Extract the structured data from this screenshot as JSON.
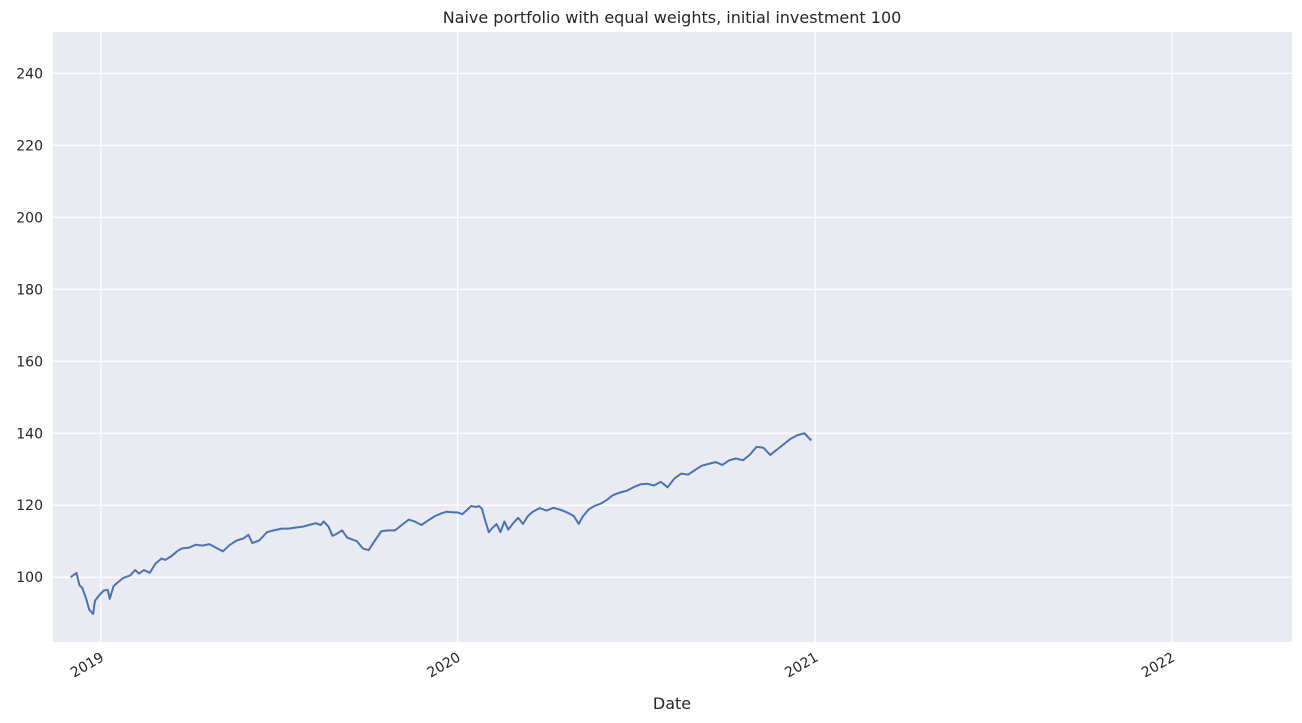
{
  "chart_data": {
    "type": "line",
    "title": "Naive portfolio with equal weights, initial investment 100",
    "xlabel": "Date",
    "ylabel": "",
    "grid": true,
    "legend": "none",
    "colors": {
      "background": "#eaeaf2",
      "grid": "#ffffff",
      "line": "#4c72b0",
      "text": "#262626"
    },
    "xlim": [
      "2018-11-13",
      "2022-05-04"
    ],
    "ylim": [
      82,
      251.5
    ],
    "xticks": [
      {
        "date": "2019-01-01",
        "label": "2019"
      },
      {
        "date": "2020-01-01",
        "label": "2020"
      },
      {
        "date": "2021-01-01",
        "label": "2021"
      },
      {
        "date": "2022-01-01",
        "label": "2022"
      }
    ],
    "yticks": [
      100,
      120,
      140,
      160,
      180,
      200,
      220,
      240
    ],
    "series": [
      {
        "values": [
          [
            "2018-12-01",
            100
          ],
          [
            "2018-12-04",
            100.6
          ],
          [
            "2018-12-07",
            101.2
          ],
          [
            "2018-12-10",
            97.8
          ],
          [
            "2018-12-13",
            97.0
          ],
          [
            "2018-12-17",
            94.0
          ],
          [
            "2018-12-20",
            91.0
          ],
          [
            "2018-12-24",
            89.8
          ],
          [
            "2018-12-26",
            93.5
          ],
          [
            "2018-12-31",
            95.2
          ],
          [
            "2019-01-04",
            96.3
          ],
          [
            "2019-01-08",
            96.5
          ],
          [
            "2019-01-10",
            94.0
          ],
          [
            "2019-01-14",
            97.5
          ],
          [
            "2019-01-18",
            98.5
          ],
          [
            "2019-01-24",
            99.8
          ],
          [
            "2019-01-31",
            100.5
          ],
          [
            "2019-02-05",
            102.0
          ],
          [
            "2019-02-09",
            101.0
          ],
          [
            "2019-02-14",
            102.0
          ],
          [
            "2019-02-20",
            101.2
          ],
          [
            "2019-02-26",
            103.8
          ],
          [
            "2019-03-04",
            105.2
          ],
          [
            "2019-03-08",
            104.8
          ],
          [
            "2019-03-14",
            105.8
          ],
          [
            "2019-03-20",
            107.2
          ],
          [
            "2019-03-25",
            108.0
          ],
          [
            "2019-04-01",
            108.2
          ],
          [
            "2019-04-08",
            109.0
          ],
          [
            "2019-04-15",
            108.8
          ],
          [
            "2019-04-22",
            109.2
          ],
          [
            "2019-04-30",
            108.0
          ],
          [
            "2019-05-06",
            107.2
          ],
          [
            "2019-05-13",
            109.0
          ],
          [
            "2019-05-20",
            110.2
          ],
          [
            "2019-05-27",
            110.8
          ],
          [
            "2019-06-01",
            111.8
          ],
          [
            "2019-06-05",
            109.5
          ],
          [
            "2019-06-12",
            110.2
          ],
          [
            "2019-06-20",
            112.5
          ],
          [
            "2019-06-27",
            113.0
          ],
          [
            "2019-07-05",
            113.5
          ],
          [
            "2019-07-12",
            113.5
          ],
          [
            "2019-07-19",
            113.8
          ],
          [
            "2019-07-26",
            114.0
          ],
          [
            "2019-08-02",
            114.5
          ],
          [
            "2019-08-09",
            115.0
          ],
          [
            "2019-08-14",
            114.5
          ],
          [
            "2019-08-17",
            115.5
          ],
          [
            "2019-08-22",
            114.0
          ],
          [
            "2019-08-26",
            111.5
          ],
          [
            "2019-08-30",
            112.0
          ],
          [
            "2019-09-05",
            113.0
          ],
          [
            "2019-09-10",
            111.0
          ],
          [
            "2019-09-15",
            110.5
          ],
          [
            "2019-09-20",
            110.0
          ],
          [
            "2019-09-26",
            108.0
          ],
          [
            "2019-10-02",
            107.5
          ],
          [
            "2019-10-08",
            110.0
          ],
          [
            "2019-10-15",
            112.8
          ],
          [
            "2019-10-22",
            113.0
          ],
          [
            "2019-10-29",
            113.0
          ],
          [
            "2019-11-05",
            114.5
          ],
          [
            "2019-11-12",
            116.0
          ],
          [
            "2019-11-18",
            115.5
          ],
          [
            "2019-11-25",
            114.5
          ],
          [
            "2019-12-02",
            115.8
          ],
          [
            "2019-12-09",
            117.0
          ],
          [
            "2019-12-16",
            117.8
          ],
          [
            "2019-12-21",
            118.2
          ],
          [
            "2019-12-28",
            118.0
          ],
          [
            "2020-01-01",
            118.0
          ],
          [
            "2020-01-06",
            117.5
          ],
          [
            "2020-01-10",
            118.5
          ],
          [
            "2020-01-15",
            119.8
          ],
          [
            "2020-01-20",
            119.5
          ],
          [
            "2020-01-23",
            119.8
          ],
          [
            "2020-01-26",
            119.0
          ],
          [
            "2020-01-29",
            116.0
          ],
          [
            "2020-02-02",
            112.5
          ],
          [
            "2020-02-06",
            113.8
          ],
          [
            "2020-02-10",
            114.8
          ],
          [
            "2020-02-14",
            112.5
          ],
          [
            "2020-02-18",
            115.5
          ],
          [
            "2020-02-22",
            113.2
          ],
          [
            "2020-02-27",
            115.0
          ],
          [
            "2020-03-03",
            116.5
          ],
          [
            "2020-03-08",
            114.8
          ],
          [
            "2020-03-13",
            117.0
          ],
          [
            "2020-03-18",
            118.2
          ],
          [
            "2020-03-25",
            119.2
          ],
          [
            "2020-04-01",
            118.5
          ],
          [
            "2020-04-08",
            119.3
          ],
          [
            "2020-04-15",
            118.8
          ],
          [
            "2020-04-22",
            118.0
          ],
          [
            "2020-04-29",
            117.0
          ],
          [
            "2020-05-04",
            114.8
          ],
          [
            "2020-05-08",
            116.8
          ],
          [
            "2020-05-14",
            118.8
          ],
          [
            "2020-05-20",
            119.8
          ],
          [
            "2020-05-27",
            120.5
          ],
          [
            "2020-06-02",
            121.5
          ],
          [
            "2020-06-08",
            122.8
          ],
          [
            "2020-06-15",
            123.5
          ],
          [
            "2020-06-22",
            124.0
          ],
          [
            "2020-06-29",
            125.0
          ],
          [
            "2020-07-06",
            125.8
          ],
          [
            "2020-07-13",
            126.0
          ],
          [
            "2020-07-20",
            125.5
          ],
          [
            "2020-07-27",
            126.5
          ],
          [
            "2020-08-03",
            125.0
          ],
          [
            "2020-08-10",
            127.5
          ],
          [
            "2020-08-17",
            128.8
          ],
          [
            "2020-08-24",
            128.5
          ],
          [
            "2020-08-31",
            129.8
          ],
          [
            "2020-09-07",
            131.0
          ],
          [
            "2020-09-14",
            131.5
          ],
          [
            "2020-09-21",
            132.0
          ],
          [
            "2020-09-28",
            131.2
          ],
          [
            "2020-10-05",
            132.5
          ],
          [
            "2020-10-12",
            133.0
          ],
          [
            "2020-10-19",
            132.5
          ],
          [
            "2020-10-26",
            134.0
          ],
          [
            "2020-11-02",
            136.2
          ],
          [
            "2020-11-09",
            136.0
          ],
          [
            "2020-11-16",
            134.0
          ],
          [
            "2020-11-23",
            135.5
          ],
          [
            "2020-11-30",
            137.0
          ],
          [
            "2020-12-07",
            138.5
          ],
          [
            "2020-12-14",
            139.5
          ],
          [
            "2020-12-21",
            140.0
          ],
          [
            "2020-12-28",
            138.0
          ]
        ]
      }
    ]
  }
}
